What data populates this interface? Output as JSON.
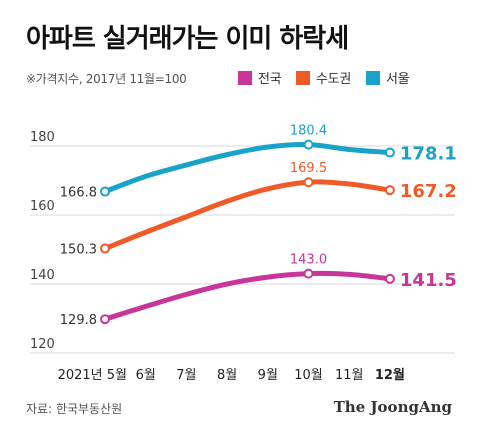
{
  "title": "아파트 실거래가는 이미 하락세",
  "subtitle": "※가격지수, 2017년 11월=100",
  "source": "자료: 한국부동산원",
  "brand": "The JoongAng",
  "colors": {
    "national": "#c8369a",
    "capital": "#f05a28",
    "seoul": "#1aa3c8",
    "grid": "#d9d9d9",
    "axis_text": "#444444"
  },
  "chart_data": {
    "type": "line",
    "title": "아파트 실거래가는 이미 하락세",
    "subtitle": "※가격지수, 2017년 11월=100",
    "categories": [
      "2021년 5월",
      "6월",
      "7월",
      "8월",
      "9월",
      "10월",
      "11월",
      "12월"
    ],
    "bold_category_index": 7,
    "yticks": [
      "180",
      "160",
      "140",
      "120"
    ],
    "ylim": [
      120,
      185
    ],
    "grid": true,
    "legend_placement": "top-right",
    "series": [
      {
        "name": "전국",
        "color": "#c8369a",
        "values": [
          129.8,
          133.5,
          137.0,
          140.0,
          142.0,
          143.0,
          142.8,
          141.5
        ],
        "point_labels": [
          {
            "index": 0,
            "text": "129.8",
            "style": "left"
          },
          {
            "index": 5,
            "text": "143.0",
            "style": "above"
          },
          {
            "index": 7,
            "text": "141.5",
            "style": "end"
          }
        ]
      },
      {
        "name": "수도권",
        "color": "#f05a28",
        "values": [
          150.3,
          155.0,
          159.5,
          164.0,
          167.6,
          169.5,
          169.0,
          167.2
        ],
        "point_labels": [
          {
            "index": 0,
            "text": "150.3",
            "style": "left"
          },
          {
            "index": 5,
            "text": "169.5",
            "style": "above"
          },
          {
            "index": 7,
            "text": "167.2",
            "style": "end"
          }
        ]
      },
      {
        "name": "서울",
        "color": "#1aa3c8",
        "values": [
          166.8,
          171.2,
          174.5,
          177.5,
          179.7,
          180.4,
          179.0,
          178.1
        ],
        "point_labels": [
          {
            "index": 0,
            "text": "166.8",
            "style": "left"
          },
          {
            "index": 5,
            "text": "180.4",
            "style": "above"
          },
          {
            "index": 7,
            "text": "178.1",
            "style": "end"
          }
        ]
      }
    ]
  }
}
